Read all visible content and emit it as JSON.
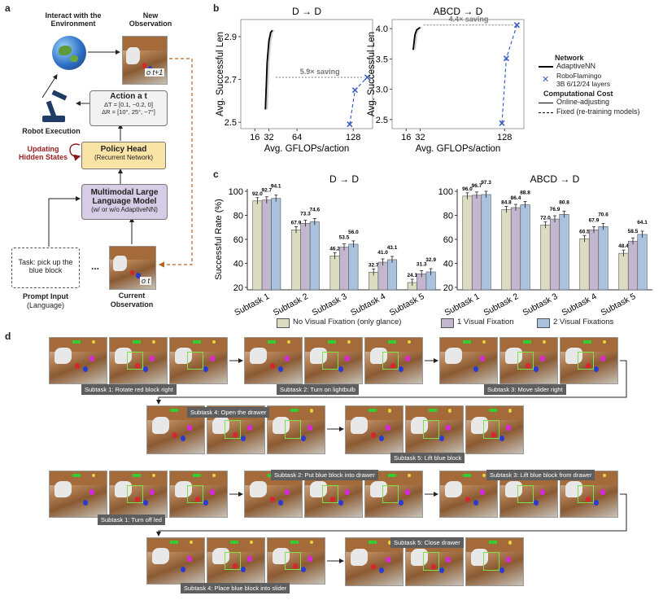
{
  "panel_a": {
    "letter": "a",
    "interact_title": "Interact with the Environment",
    "new_obs_title": "New Observation",
    "new_obs_label": "o t+1",
    "action_title": "Action a t",
    "action_line1": "ΔT = [0.1, −0.2, 0]",
    "action_line2": "ΔR = [10°, 25°, −7°]",
    "robot_exec": "Robot Execution",
    "updating": "Updating Hidden States",
    "policy_head": "Policy Head",
    "policy_sub": "(Recurrent Network)",
    "mllm_title": "Multimodal Large Language Model",
    "mllm_sub": "(w/ or w/o AdaptiveNN)",
    "task_text": "Task: pick up the blue block",
    "ellipsis": "...",
    "prompt_input": "Prompt Input",
    "prompt_lang": "(Language)",
    "current_obs": "Current Observation",
    "obs_t_label": "o t"
  },
  "panel_b": {
    "letter": "b",
    "legend": {
      "network_title": "Network",
      "adaptive": "AdaptiveNN",
      "roboflamingo_1": "RoboFlamingo",
      "roboflamingo_2": "3B 6/12/24 layers",
      "cost_title": "Computational Cost",
      "online": "Online-adjusting",
      "fixed": "Fixed (re-training models)"
    }
  },
  "panel_c": {
    "letter": "c",
    "legend": [
      "No Visual Fixation (only glance)",
      "1 Visual Fixation",
      "2 Visual Fixations"
    ]
  },
  "panel_d": {
    "letter": "d",
    "captions": [
      "Subtask 1: Rotate red block right",
      "Subtask 2: Turn on lightbulb",
      "Subtask 3: Move slider right",
      "Subtask 4: Open the drawer",
      "Subtask 5: Lift blue block",
      "Subtask 1: Turn off led",
      "Subtask 2: Put blue block into drawer",
      "Subtask 3: Lift blue block from drawer",
      "Subtask 4: Place blue block into slider",
      "Subtask 5: Close drawer"
    ]
  },
  "chart_data": [
    {
      "type": "line",
      "id": "b-left",
      "title": "D → D",
      "xlabel": "Avg. GFLOPs/action",
      "ylabel": "Avg. Successful Len",
      "xticks": [
        16,
        32,
        64,
        128
      ],
      "yticks": [
        2.5,
        2.7,
        2.9
      ],
      "xlim": [
        0,
        150
      ],
      "ylim": [
        2.47,
        2.98
      ],
      "series": [
        {
          "name": "AdaptiveNN",
          "style": "online",
          "color": "#000000",
          "x": [
            28,
            30,
            32,
            34,
            36
          ],
          "y": [
            2.56,
            2.78,
            2.88,
            2.92,
            2.93
          ]
        },
        {
          "name": "RoboFlamingo 3B 6/12/24 layers",
          "style": "fixed",
          "color": "#3a5fbf",
          "x": [
            124,
            130,
            144
          ],
          "y": [
            2.49,
            2.65,
            2.71
          ]
        }
      ],
      "annotation": "5.9× saving"
    },
    {
      "type": "line",
      "id": "b-right",
      "title": "ABCD → D",
      "xlabel": "Avg. GFLOPs/action",
      "ylabel": "Avg. Successful Len",
      "xticks": [
        16,
        32,
        128
      ],
      "yticks": [
        2.5,
        3.0,
        3.5,
        4.0
      ],
      "xlim": [
        0,
        150
      ],
      "ylim": [
        2.35,
        4.15
      ],
      "series": [
        {
          "name": "AdaptiveNN",
          "style": "online",
          "color": "#000000",
          "x": [
            24,
            26,
            28,
            30,
            32
          ],
          "y": [
            3.65,
            3.9,
            3.98,
            4.0,
            4.02
          ]
        },
        {
          "name": "RoboFlamingo 3B 6/12/24 layers",
          "style": "fixed",
          "color": "#3a5fbf",
          "x": [
            125,
            130,
            142
          ],
          "y": [
            2.44,
            3.51,
            4.06
          ]
        }
      ],
      "annotation": "4.4× saving"
    },
    {
      "type": "bar",
      "id": "c-left",
      "title": "D → D",
      "ylabel": "Successful Rate (%)",
      "categories": [
        "Subtask 1",
        "Subtask 2",
        "Subtask 3",
        "Subtask 4",
        "Subtask 5"
      ],
      "yticks": [
        20,
        40,
        60,
        80,
        100
      ],
      "ylim": [
        18,
        102
      ],
      "series": [
        {
          "name": "No Visual Fixation (only glance)",
          "color": "#dcdcc0",
          "values": [
            92.0,
            67.9,
            46.2,
            32.7,
            24.1
          ]
        },
        {
          "name": "1 Visual Fixation",
          "color": "#c3b6cf",
          "values": [
            92.7,
            73.3,
            53.5,
            41.0,
            31.3
          ]
        },
        {
          "name": "2 Visual Fixations",
          "color": "#a9c3de",
          "values": [
            94.1,
            74.6,
            56.0,
            43.1,
            32.9
          ]
        }
      ]
    },
    {
      "type": "bar",
      "id": "c-right",
      "title": "ABCD → D",
      "categories": [
        "Subtask 1",
        "Subtask 2",
        "Subtask 3",
        "Subtask 4",
        "Subtask 5"
      ],
      "yticks": [
        20,
        40,
        60,
        80,
        100
      ],
      "ylim": [
        18,
        102
      ],
      "series": [
        {
          "name": "No Visual Fixation (only glance)",
          "color": "#dcdcc0",
          "values": [
            96.0,
            84.8,
            72.0,
            60.5,
            48.4
          ]
        },
        {
          "name": "1 Visual Fixation",
          "color": "#c3b6cf",
          "values": [
            96.7,
            86.4,
            76.9,
            67.9,
            58.5
          ]
        },
        {
          "name": "2 Visual Fixations",
          "color": "#a9c3de",
          "values": [
            97.3,
            88.8,
            80.8,
            70.6,
            64.1
          ]
        }
      ]
    }
  ]
}
